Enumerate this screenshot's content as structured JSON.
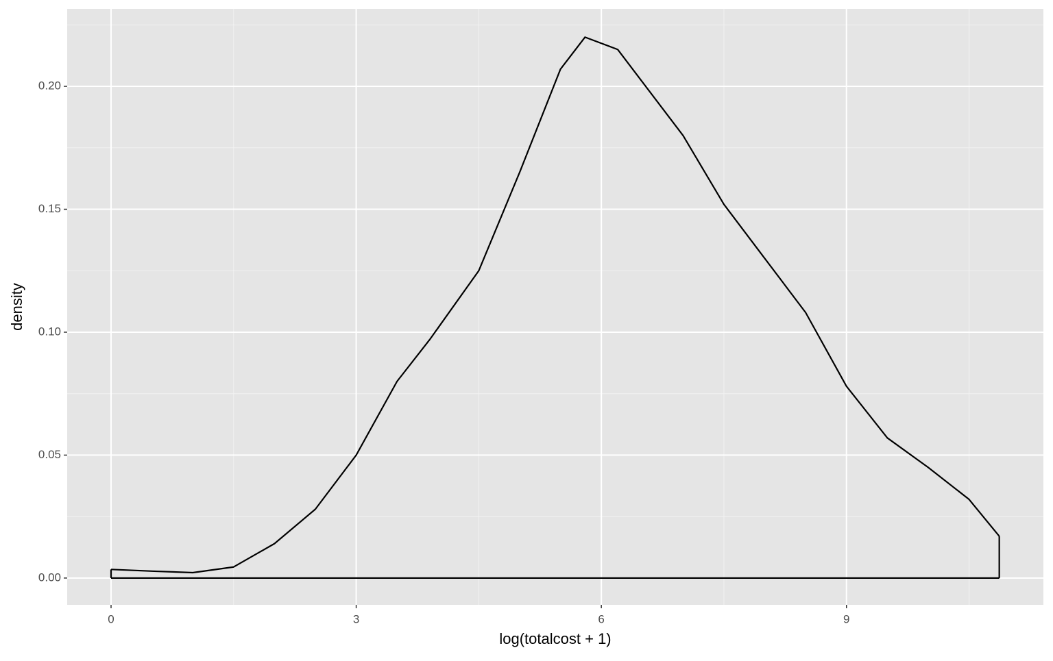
{
  "chart_data": {
    "type": "density",
    "x_label": "log(totalcost + 1)",
    "y_label": "density",
    "x": [
      0,
      0.5,
      1.0,
      1.5,
      2.0,
      2.5,
      3.0,
      3.5,
      3.9,
      4.5,
      5.0,
      5.5,
      5.8,
      6.2,
      7.0,
      7.5,
      8.0,
      8.5,
      9.0,
      9.5,
      10.0,
      10.5,
      10.87
    ],
    "values": [
      0.0035,
      0.0028,
      0.0022,
      0.0045,
      0.014,
      0.028,
      0.05,
      0.08,
      0.097,
      0.125,
      0.165,
      0.207,
      0.22,
      0.215,
      0.18,
      0.152,
      0.13,
      0.108,
      0.078,
      0.057,
      0.045,
      0.032,
      0.017
    ],
    "color": "#000000",
    "xlim": [
      -0.537,
      11.41
    ],
    "ylim": [
      -0.0109,
      0.2315
    ],
    "xticks": [
      0,
      3,
      6,
      9
    ],
    "yticks": [
      {
        "value": 0,
        "label": "0.00"
      },
      {
        "value": 0.05,
        "label": "0.05"
      },
      {
        "value": 0.1,
        "label": "0.10"
      },
      {
        "value": 0.15,
        "label": "0.15"
      },
      {
        "value": 0.2,
        "label": "0.20"
      }
    ],
    "grid": true
  }
}
